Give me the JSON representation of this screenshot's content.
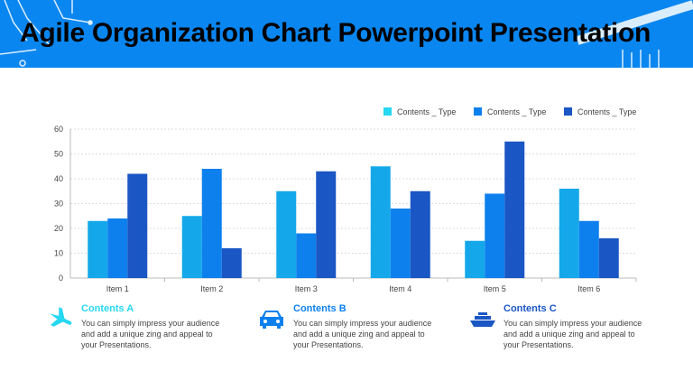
{
  "title": "Agile Organization Chart Powerpoint Presentation",
  "colors": {
    "header": "#0a86f0",
    "s1": "#14a8ea",
    "s2": "#0d80ee",
    "s3": "#1a56c4",
    "legend1": "#27d8f2"
  },
  "chart_data": {
    "type": "bar",
    "categories": [
      "Item 1",
      "Item 2",
      "Item 3",
      "Item 4",
      "Item 5",
      "Item 6"
    ],
    "series": [
      {
        "name": "Contents _ Type",
        "values": [
          23,
          25,
          35,
          45,
          15,
          36
        ]
      },
      {
        "name": "Contents _ Type",
        "values": [
          24,
          44,
          18,
          28,
          34,
          23
        ]
      },
      {
        "name": "Contents _ Type",
        "values": [
          42,
          12,
          43,
          35,
          55,
          16
        ]
      }
    ],
    "ylim": [
      0,
      60
    ],
    "yticks": [
      0,
      10,
      20,
      30,
      40,
      50,
      60
    ],
    "grid": true,
    "legend": "top-right"
  },
  "features": [
    {
      "title": "Contents A",
      "text": "You can simply impress your audience and add a unique zing and appeal to your Presentations.",
      "icon": "airplane-icon",
      "color": "#27d8f2"
    },
    {
      "title": "Contents B",
      "text": "You can simply impress your audience and add a unique zing and appeal to your Presentations.",
      "icon": "car-icon",
      "color": "#0d80ee"
    },
    {
      "title": "Contents C",
      "text": "You can simply impress your audience and add a unique zing and appeal to your Presentations.",
      "icon": "ship-icon",
      "color": "#1a56c4"
    }
  ]
}
